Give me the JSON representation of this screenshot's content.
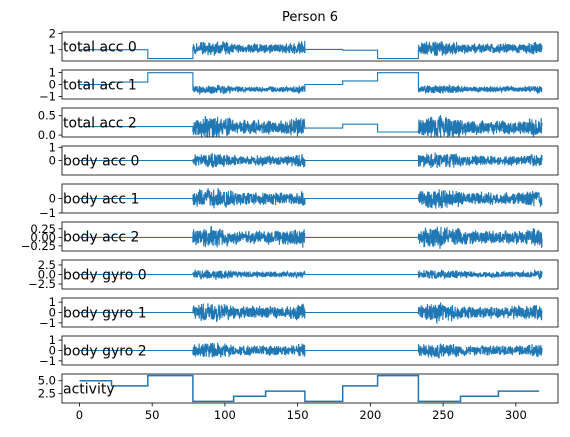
{
  "figure": {
    "title": "Person 6"
  },
  "colors": {
    "series": "#1f77b4",
    "axis": "#000000",
    "background": "#ffffff"
  },
  "chart_data": [
    {
      "type": "line",
      "name": "total acc 0",
      "ylim": [
        0.3,
        2.1
      ],
      "yticks": [
        1,
        2
      ],
      "ytick_labels": [
        "1",
        "2"
      ],
      "segments": [
        {
          "x0": 0,
          "x1": 47,
          "kind": "flat",
          "value": 1.0
        },
        {
          "x0": 47,
          "x1": 78,
          "kind": "flat",
          "value": 0.45
        },
        {
          "x0": 78,
          "x1": 155,
          "kind": "noise",
          "value": 1.08,
          "amp": 0.45
        },
        {
          "x0": 155,
          "x1": 181,
          "kind": "flat",
          "value": 1.02
        },
        {
          "x0": 181,
          "x1": 205,
          "kind": "flat",
          "value": 0.97
        },
        {
          "x0": 205,
          "x1": 233,
          "kind": "flat",
          "value": 0.45
        },
        {
          "x0": 233,
          "x1": 318,
          "kind": "noise",
          "value": 1.08,
          "amp": 0.45
        }
      ]
    },
    {
      "type": "line",
      "name": "total acc 1",
      "ylim": [
        -1.2,
        1.2
      ],
      "yticks": [
        -1,
        0,
        1
      ],
      "ytick_labels": [
        "−1",
        "0",
        "1"
      ],
      "segments": [
        {
          "x0": 0,
          "x1": 22,
          "kind": "flat",
          "value": 0.0
        },
        {
          "x0": 22,
          "x1": 47,
          "kind": "flat",
          "value": 0.2
        },
        {
          "x0": 47,
          "x1": 78,
          "kind": "flat",
          "value": 0.98
        },
        {
          "x0": 78,
          "x1": 155,
          "kind": "noise",
          "value": -0.4,
          "amp": 0.35
        },
        {
          "x0": 155,
          "x1": 181,
          "kind": "flat",
          "value": 0.0
        },
        {
          "x0": 181,
          "x1": 205,
          "kind": "flat",
          "value": 0.3
        },
        {
          "x0": 205,
          "x1": 233,
          "kind": "flat",
          "value": 0.98
        },
        {
          "x0": 233,
          "x1": 318,
          "kind": "noise",
          "value": -0.4,
          "amp": 0.35
        }
      ]
    },
    {
      "type": "line",
      "name": "total acc 2",
      "ylim": [
        -0.05,
        0.7
      ],
      "yticks": [
        0.0,
        0.5
      ],
      "ytick_labels": [
        "0.0",
        "0.5"
      ],
      "segments": [
        {
          "x0": 0,
          "x1": 78,
          "kind": "flat",
          "value": 0.22
        },
        {
          "x0": 78,
          "x1": 155,
          "kind": "noise",
          "value": 0.2,
          "amp": 0.28
        },
        {
          "x0": 155,
          "x1": 181,
          "kind": "flat",
          "value": 0.18
        },
        {
          "x0": 181,
          "x1": 205,
          "kind": "flat",
          "value": 0.28
        },
        {
          "x0": 205,
          "x1": 233,
          "kind": "flat",
          "value": 0.08
        },
        {
          "x0": 233,
          "x1": 318,
          "kind": "noise",
          "value": 0.2,
          "amp": 0.28
        }
      ]
    },
    {
      "type": "line",
      "name": "body acc 0",
      "ylim": [
        -1.1,
        1.1
      ],
      "yticks": [
        0,
        1
      ],
      "ytick_labels": [
        "0",
        "1"
      ],
      "segments": [
        {
          "x0": 0,
          "x1": 78,
          "kind": "flat",
          "value": 0.0
        },
        {
          "x0": 78,
          "x1": 155,
          "kind": "noise",
          "value": 0.0,
          "amp": 0.55
        },
        {
          "x0": 155,
          "x1": 233,
          "kind": "flat",
          "value": 0.0
        },
        {
          "x0": 233,
          "x1": 318,
          "kind": "noise",
          "value": 0.0,
          "amp": 0.55
        }
      ]
    },
    {
      "type": "line",
      "name": "body acc 1",
      "ylim": [
        -1.0,
        1.0
      ],
      "yticks": [
        -1,
        0
      ],
      "ytick_labels": [
        "−1",
        "0"
      ],
      "segments": [
        {
          "x0": 0,
          "x1": 78,
          "kind": "flat",
          "value": 0.0
        },
        {
          "x0": 78,
          "x1": 155,
          "kind": "noise",
          "value": 0.0,
          "amp": 0.65
        },
        {
          "x0": 155,
          "x1": 233,
          "kind": "flat",
          "value": 0.0
        },
        {
          "x0": 233,
          "x1": 318,
          "kind": "noise",
          "value": 0.0,
          "amp": 0.65
        }
      ]
    },
    {
      "type": "line",
      "name": "body acc 2",
      "ylim": [
        -0.4,
        0.45
      ],
      "yticks": [
        -0.25,
        0.0,
        0.25
      ],
      "ytick_labels": [
        "−0.25",
        "0.00",
        "0.25"
      ],
      "segments": [
        {
          "x0": 0,
          "x1": 78,
          "kind": "flat",
          "value": 0.0
        },
        {
          "x0": 78,
          "x1": 155,
          "kind": "noise",
          "value": 0.0,
          "amp": 0.3
        },
        {
          "x0": 155,
          "x1": 233,
          "kind": "flat",
          "value": 0.0
        },
        {
          "x0": 233,
          "x1": 318,
          "kind": "noise",
          "value": 0.0,
          "amp": 0.3
        }
      ]
    },
    {
      "type": "line",
      "name": "body gyro 0",
      "ylim": [
        -3.8,
        3.8
      ],
      "yticks": [
        -2.5,
        0.0,
        2.5
      ],
      "ytick_labels": [
        "−2.5",
        "0.0",
        "2.5"
      ],
      "segments": [
        {
          "x0": 0,
          "x1": 78,
          "kind": "flat",
          "value": 0.0
        },
        {
          "x0": 78,
          "x1": 155,
          "kind": "noise",
          "value": 0.0,
          "amp": 1.2
        },
        {
          "x0": 155,
          "x1": 233,
          "kind": "flat",
          "value": 0.0
        },
        {
          "x0": 233,
          "x1": 318,
          "kind": "noise",
          "value": 0.0,
          "amp": 1.2
        }
      ]
    },
    {
      "type": "line",
      "name": "body gyro 1",
      "ylim": [
        -1.4,
        1.4
      ],
      "yticks": [
        -1,
        0,
        1
      ],
      "ytick_labels": [
        "−1",
        "0",
        "1"
      ],
      "segments": [
        {
          "x0": 0,
          "x1": 78,
          "kind": "flat",
          "value": 0.0
        },
        {
          "x0": 78,
          "x1": 155,
          "kind": "noise",
          "value": 0.0,
          "amp": 0.9
        },
        {
          "x0": 155,
          "x1": 233,
          "kind": "flat",
          "value": 0.0
        },
        {
          "x0": 233,
          "x1": 318,
          "kind": "noise",
          "value": 0.0,
          "amp": 0.9
        }
      ]
    },
    {
      "type": "line",
      "name": "body gyro 2",
      "ylim": [
        -1.4,
        1.4
      ],
      "yticks": [
        -1,
        0,
        1
      ],
      "ytick_labels": [
        "−1",
        "0",
        "1"
      ],
      "segments": [
        {
          "x0": 0,
          "x1": 78,
          "kind": "flat",
          "value": 0.0
        },
        {
          "x0": 78,
          "x1": 155,
          "kind": "noise",
          "value": 0.0,
          "amp": 0.7
        },
        {
          "x0": 155,
          "x1": 233,
          "kind": "flat",
          "value": 0.0
        },
        {
          "x0": 233,
          "x1": 318,
          "kind": "noise",
          "value": 0.0,
          "amp": 0.7
        }
      ]
    },
    {
      "type": "line",
      "name": "activity",
      "ylim": [
        0.7,
        6.3
      ],
      "yticks": [
        2.5,
        5.0
      ],
      "ytick_labels": [
        "2.5",
        "5.0"
      ],
      "xticks": [
        0,
        50,
        100,
        150,
        200,
        250,
        300
      ],
      "xtick_labels": [
        "0",
        "50",
        "100",
        "150",
        "200",
        "250",
        "300"
      ],
      "steps": [
        {
          "x0": 0,
          "x1": 22,
          "value": 5
        },
        {
          "x0": 22,
          "x1": 47,
          "value": 4
        },
        {
          "x0": 47,
          "x1": 78,
          "value": 6
        },
        {
          "x0": 78,
          "x1": 106,
          "value": 1
        },
        {
          "x0": 106,
          "x1": 128,
          "value": 2
        },
        {
          "x0": 128,
          "x1": 155,
          "value": 3
        },
        {
          "x0": 155,
          "x1": 181,
          "value": 1
        },
        {
          "x0": 181,
          "x1": 205,
          "value": 4
        },
        {
          "x0": 205,
          "x1": 233,
          "value": 6
        },
        {
          "x0": 233,
          "x1": 262,
          "value": 1
        },
        {
          "x0": 262,
          "x1": 288,
          "value": 2
        },
        {
          "x0": 288,
          "x1": 316,
          "value": 3
        }
      ]
    }
  ],
  "xlim": [
    -12,
    329
  ]
}
